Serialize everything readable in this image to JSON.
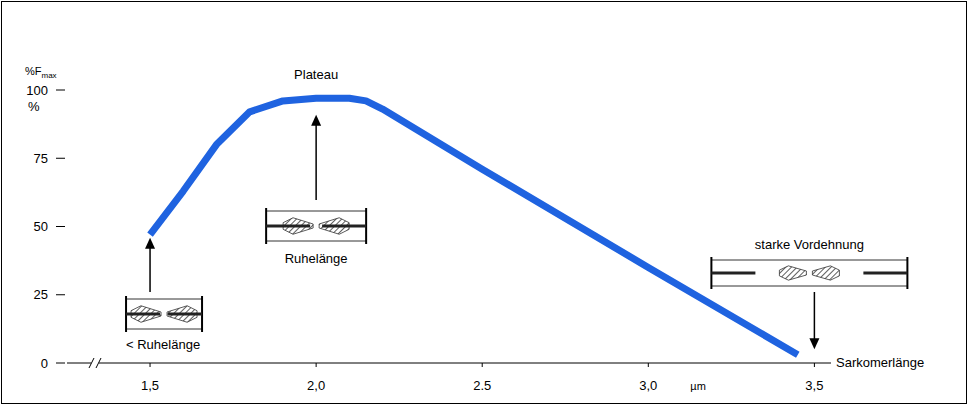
{
  "chart_data": {
    "type": "line",
    "ylabel": "%F",
    "ylabel_subscript": "max",
    "ylabel_unit": "%",
    "xlabel": "Sarkomerlänge",
    "xlabel_unit": "µm",
    "x": [
      1.5,
      1.6,
      1.7,
      1.8,
      1.9,
      2.0,
      2.1,
      2.15,
      2.2,
      2.5,
      3.0,
      3.45
    ],
    "values": [
      47,
      63,
      80,
      92,
      96,
      97,
      97,
      96,
      93,
      71,
      35,
      3
    ],
    "color": "#1f63e0",
    "marker": "none",
    "line_style": "solid",
    "grid": false,
    "xlim": [
      1.25,
      3.55
    ],
    "ylim": [
      0,
      100
    ],
    "xticks": [
      {
        "value": 1.5,
        "label": "1,5"
      },
      {
        "value": 2.0,
        "label": "2,0"
      },
      {
        "value": 2.5,
        "label": "2.5"
      },
      {
        "value": 3.0,
        "label": "3,0"
      },
      {
        "value": 3.5,
        "label": "3,5"
      }
    ],
    "yticks": [
      0,
      25,
      50,
      75,
      100
    ],
    "annotations": [
      {
        "text": "< Ruhelänge",
        "x": 1.5,
        "y": 47
      },
      {
        "text": "Plateau",
        "x": 2.0,
        "y": 100
      },
      {
        "text": "Ruhelänge",
        "x": 2.0,
        "y": 92
      },
      {
        "text": "starke Vordehnung",
        "x": 3.5,
        "y": 5
      }
    ]
  }
}
